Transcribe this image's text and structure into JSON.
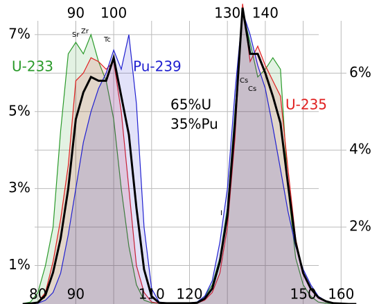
{
  "chart_data": {
    "type": "line",
    "x": [
      76,
      78,
      80,
      82,
      84,
      86,
      88,
      90,
      92,
      94,
      96,
      98,
      100,
      102,
      104,
      106,
      108,
      110,
      112,
      114,
      116,
      118,
      120,
      122,
      124,
      126,
      128,
      130,
      132,
      134,
      136,
      138,
      140,
      142,
      144,
      146,
      148,
      150,
      152,
      154,
      156,
      158,
      160,
      162,
      164
    ],
    "series": [
      {
        "name": "U-233",
        "color": "#2a9a2a",
        "values": [
          0.01,
          0.05,
          0.3,
          1.0,
          2.0,
          4.5,
          6.5,
          6.8,
          6.5,
          7.0,
          6.3,
          5.8,
          4.8,
          3.0,
          1.5,
          0.5,
          0.1,
          0.03,
          0.02,
          0.02,
          0.02,
          0.02,
          0.02,
          0.05,
          0.2,
          0.5,
          1.2,
          2.5,
          5.0,
          7.6,
          6.8,
          5.9,
          6.1,
          6.4,
          6.1,
          3.0,
          1.2,
          0.5,
          0.2,
          0.05,
          0.02,
          0.01,
          0,
          0,
          0
        ]
      },
      {
        "name": "U-235",
        "color": "#e02020",
        "values": [
          0,
          0.02,
          0.05,
          0.3,
          1.1,
          2.2,
          3.6,
          5.8,
          6.0,
          6.4,
          6.3,
          6.1,
          6.3,
          5.0,
          3.0,
          1.0,
          0.3,
          0.05,
          0.02,
          0.01,
          0.01,
          0.01,
          0.01,
          0.02,
          0.1,
          0.3,
          0.8,
          2.0,
          4.3,
          7.8,
          6.3,
          6.7,
          6.2,
          5.8,
          5.4,
          3.5,
          1.7,
          0.8,
          0.4,
          0.15,
          0.06,
          0.02,
          0.01,
          0,
          0
        ]
      },
      {
        "name": "Pu-239",
        "color": "#2020d0",
        "values": [
          0,
          0,
          0.02,
          0.1,
          0.3,
          0.8,
          1.8,
          3.0,
          4.2,
          5.0,
          5.6,
          6.0,
          6.6,
          6.1,
          7.0,
          5.2,
          2.0,
          0.4,
          0.05,
          0.03,
          0.03,
          0.03,
          0.03,
          0.05,
          0.2,
          0.6,
          1.6,
          3.0,
          5.5,
          7.6,
          7.0,
          6.2,
          5.6,
          4.6,
          3.5,
          2.4,
          1.5,
          0.9,
          0.5,
          0.2,
          0.08,
          0.02,
          0,
          0,
          0
        ]
      },
      {
        "name": "65%U 35%Pu",
        "color": "#000000",
        "values": [
          0,
          0.01,
          0.04,
          0.23,
          0.82,
          1.7,
          3.0,
          4.8,
          5.5,
          5.9,
          5.8,
          5.8,
          6.4,
          5.4,
          4.4,
          2.5,
          0.9,
          0.2,
          0.03,
          0.02,
          0.02,
          0.02,
          0.02,
          0.03,
          0.14,
          0.4,
          1.1,
          2.3,
          4.7,
          7.7,
          6.5,
          6.5,
          6.0,
          5.4,
          4.7,
          3.1,
          1.6,
          0.8,
          0.4,
          0.17,
          0.07,
          0.02,
          0.01,
          0,
          0
        ]
      }
    ],
    "labels": [
      "U-233",
      "Pu-239",
      "65%U",
      "35%Pu",
      "U-235"
    ],
    "elements": [
      "Sr",
      "Zr",
      "Tc",
      "Cs",
      "Cs",
      "I"
    ],
    "xlim": [
      70,
      170
    ],
    "xticks": [
      80,
      90,
      110,
      120,
      150,
      160
    ],
    "xticks_top": [
      90,
      100,
      130,
      140
    ],
    "ylim": [
      0,
      7.9
    ],
    "yticks": [
      {
        "value": 1,
        "label": "1%"
      },
      {
        "value": 3,
        "label": "3%"
      },
      {
        "value": 5,
        "label": "5%"
      },
      {
        "value": 7,
        "label": "7%"
      }
    ],
    "y2lim": [
      0,
      7.9
    ],
    "y2ticks": [
      {
        "value": 2,
        "label": "2%"
      },
      {
        "value": 4,
        "label": "4%"
      },
      {
        "value": 6,
        "label": "6%"
      }
    ],
    "grid": true
  }
}
